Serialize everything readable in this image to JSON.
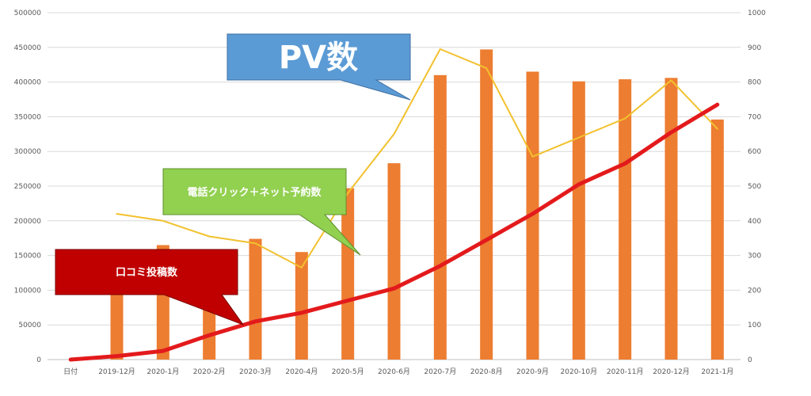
{
  "chart_data": {
    "type": "bar",
    "categories": [
      "日付",
      "2019-12月",
      "2020-1月",
      "2020-2月",
      "2020-3月",
      "2020-4月",
      "2020-5月",
      "2020-6月",
      "2020-7月",
      "2020-8月",
      "2020-9月",
      "2020-10月",
      "2020-11月",
      "2020-12月",
      "2021-1月"
    ],
    "left_axis": {
      "min": 0,
      "max": 500000,
      "step": 50000,
      "ticks": [
        "0",
        "50000",
        "100000",
        "150000",
        "200000",
        "250000",
        "300000",
        "350000",
        "400000",
        "450000",
        "500000"
      ]
    },
    "right_axis": {
      "min": 0,
      "max": 1000,
      "step": 100,
      "ticks": [
        "0",
        "100",
        "200",
        "300",
        "400",
        "500",
        "600",
        "700",
        "800",
        "900",
        "1000"
      ]
    },
    "series": [
      {
        "name": "PV数",
        "kind": "bar",
        "axis": "left",
        "color": "#ED7D31",
        "values": [
          null,
          110000,
          165000,
          102000,
          174000,
          155000,
          247000,
          283000,
          410000,
          447000,
          415000,
          401000,
          404000,
          406000,
          346000
        ]
      },
      {
        "name": "電話クリック＋ネット予約数",
        "kind": "line",
        "axis": "right",
        "color": "#F2C12E",
        "values": [
          null,
          420,
          400,
          355,
          335,
          265,
          480,
          650,
          895,
          840,
          585,
          640,
          695,
          805,
          665
        ]
      },
      {
        "name": "口コミ投稿数",
        "kind": "line",
        "axis": "right",
        "color": "#E31A1C",
        "values": [
          0,
          10,
          25,
          70,
          110,
          135,
          170,
          205,
          270,
          345,
          420,
          505,
          565,
          655,
          735
        ]
      }
    ],
    "grid": true,
    "legend": "none",
    "annotations": [
      {
        "id": "pv",
        "text": "PV数",
        "fill": "#5B9BD5"
      },
      {
        "id": "tel",
        "text": "電話クリック＋ネット予約数",
        "fill": "#92D050"
      },
      {
        "id": "review",
        "text": "口コミ投稿数",
        "fill": "#C00000"
      }
    ]
  }
}
